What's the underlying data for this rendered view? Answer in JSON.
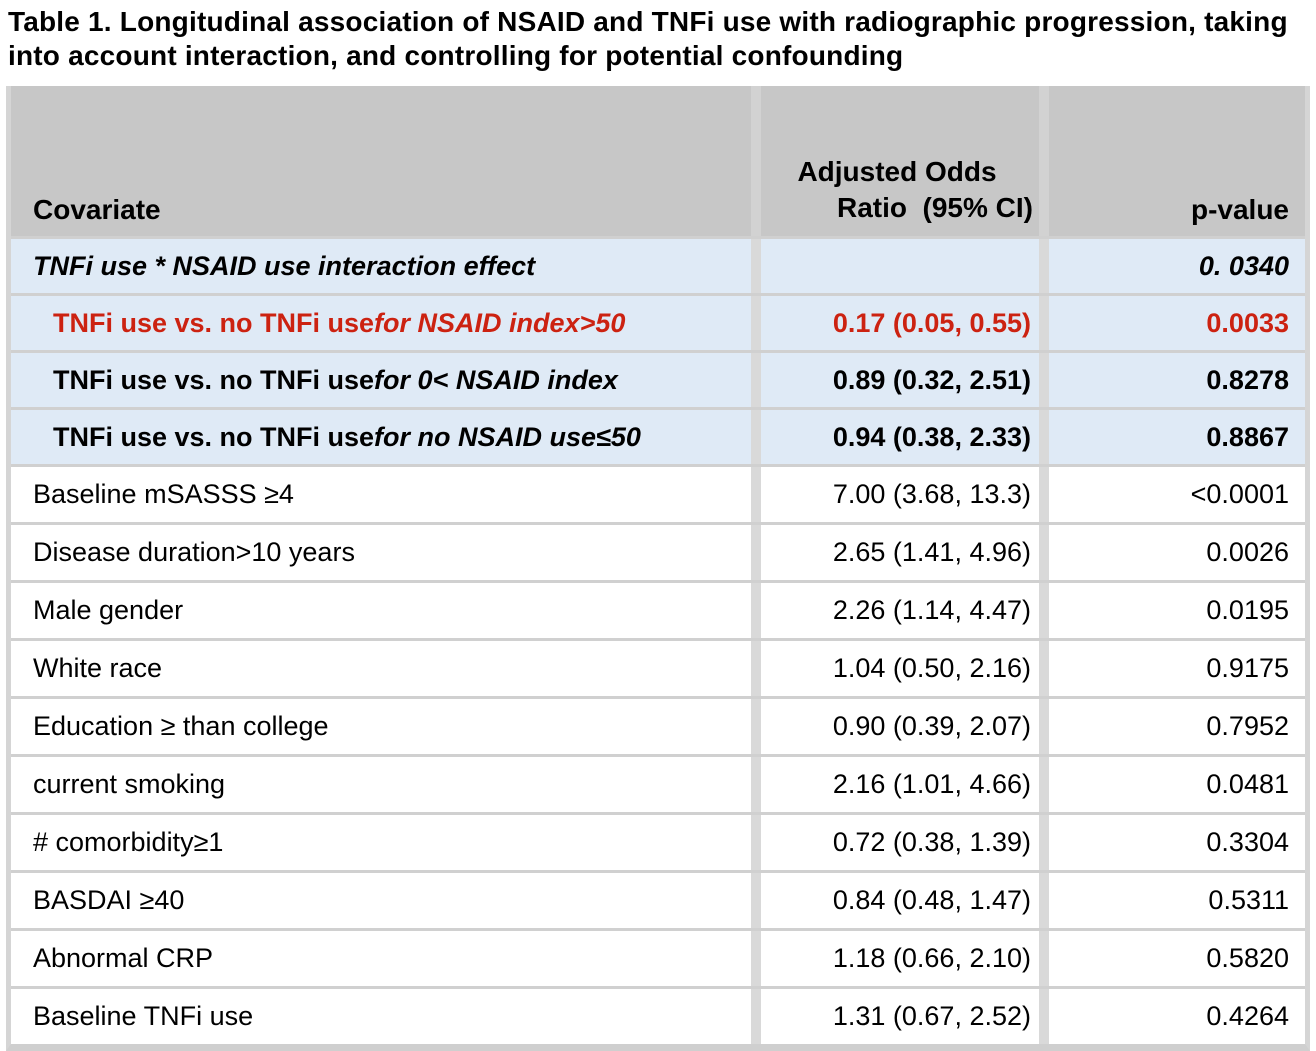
{
  "title": "Table 1. Longitudinal association of NSAID and TNFi use with radiographic progression, taking into account interaction, and controlling for potential confounding",
  "colors": {
    "header_bg": "#c7c7c7",
    "highlight_row_bg": "#dfeaf6",
    "row_separator": "#d0d0d0",
    "column_gap": "#d9d9d9",
    "red_text": "#cc2211",
    "text": "#000000"
  },
  "header": {
    "covariate": "Covariate",
    "aor_line1": "Adjusted Odds",
    "aor_line2": "Ratio  (95% CI)",
    "pvalue": "p-value"
  },
  "rows": [
    {
      "label": "TNFi use * NSAID use interaction effect",
      "label_italic": "",
      "aor": "",
      "p": "0. 0340"
    },
    {
      "label": "TNFi use vs. no TNFi use ",
      "label_italic": "for NSAID index>50",
      "aor": "0.17 (0.05, 0.55)",
      "p": "0.0033"
    },
    {
      "label": "TNFi use vs. no TNFi use ",
      "label_italic": "for 0< NSAID index",
      "aor": "0.89 (0.32, 2.51)",
      "p": "0.8278"
    },
    {
      "label": "TNFi use vs. no TNFi use ",
      "label_italic": "for no NSAID use≤50",
      "aor": "0.94 (0.38, 2.33)",
      "p": "0.8867"
    },
    {
      "label": "Baseline mSASSS ≥4",
      "label_italic": "",
      "aor": "7.00 (3.68, 13.3)",
      "p": "<0.0001"
    },
    {
      "label": "Disease duration>10 years",
      "label_italic": "",
      "aor": "2.65 (1.41, 4.96)",
      "p": "0.0026"
    },
    {
      "label": "Male gender",
      "label_italic": "",
      "aor": "2.26 (1.14, 4.47)",
      "p": "0.0195"
    },
    {
      "label": "White race",
      "label_italic": "",
      "aor": "1.04 (0.50, 2.16)",
      "p": "0.9175"
    },
    {
      "label": "Education ≥ than college",
      "label_italic": "",
      "aor": "0.90 (0.39, 2.07)",
      "p": "0.7952"
    },
    {
      "label": "current smoking",
      "label_italic": "",
      "aor": "2.16 (1.01, 4.66)",
      "p": "0.0481"
    },
    {
      "label": "# comorbidity≥1",
      "label_italic": "",
      "aor": "0.72 (0.38, 1.39)",
      "p": "0.3304"
    },
    {
      "label": "BASDAI ≥40",
      "label_italic": "",
      "aor": "0.84 (0.48, 1.47)",
      "p": "0.5311"
    },
    {
      "label": "Abnormal CRP",
      "label_italic": "",
      "aor": "1.18 (0.66, 2.10)",
      "p": "0.5820"
    },
    {
      "label": "Baseline TNFi use",
      "label_italic": "",
      "aor": "1.31 (0.67, 2.52)",
      "p": "0.4264"
    }
  ]
}
